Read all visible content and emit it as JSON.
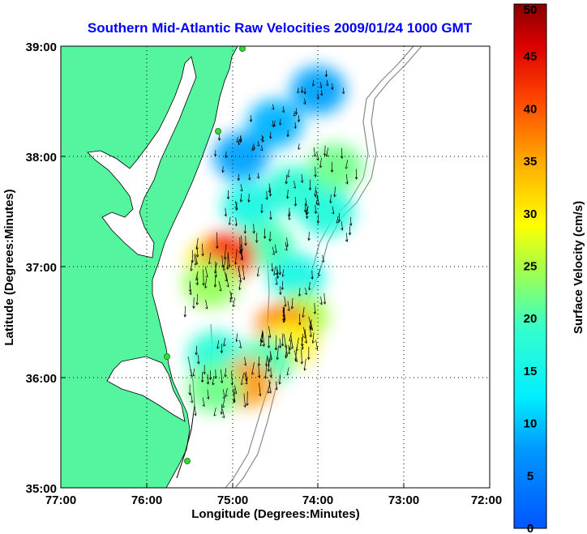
{
  "chart_data": {
    "type": "heatmap",
    "title": "Southern Mid-Atlantic Raw Velocities 2009/01/24 1000 GMT",
    "xlabel": "Longitude (Degrees:Minutes)",
    "ylabel": "Latitude (Degrees:Minutes)",
    "colorbar_label": "Surface Velocity (cm/s)",
    "x_ticks": [
      "77:00",
      "76:00",
      "75:00",
      "74:00",
      "73:00",
      "72:00"
    ],
    "y_ticks": [
      "39:00",
      "38:00",
      "37:00",
      "36:00",
      "35:00"
    ],
    "colorbar_ticks": [
      "50",
      "45",
      "40",
      "35",
      "30",
      "25",
      "20",
      "15",
      "10",
      "5",
      "0"
    ],
    "xlim": [
      -77,
      -72
    ],
    "ylim": [
      35,
      39
    ],
    "clim": [
      0,
      50
    ],
    "grid": true,
    "colormap": "jet",
    "land_color": "#55f5a0",
    "vector_color": "#000000",
    "regions": [
      {
        "lon": -74.0,
        "lat": 38.6,
        "speed": 8
      },
      {
        "lon": -74.5,
        "lat": 38.3,
        "speed": 9
      },
      {
        "lon": -74.9,
        "lat": 38.0,
        "speed": 8
      },
      {
        "lon": -73.8,
        "lat": 37.9,
        "speed": 22
      },
      {
        "lon": -74.3,
        "lat": 37.7,
        "speed": 18
      },
      {
        "lon": -74.8,
        "lat": 37.55,
        "speed": 16
      },
      {
        "lon": -73.9,
        "lat": 37.5,
        "speed": 17
      },
      {
        "lon": -74.6,
        "lat": 37.2,
        "speed": 20
      },
      {
        "lon": -75.2,
        "lat": 37.05,
        "speed": 30
      },
      {
        "lon": -75.05,
        "lat": 37.1,
        "speed": 42
      },
      {
        "lon": -75.25,
        "lat": 36.85,
        "speed": 24
      },
      {
        "lon": -74.25,
        "lat": 36.9,
        "speed": 16
      },
      {
        "lon": -74.2,
        "lat": 36.55,
        "speed": 25
      },
      {
        "lon": -74.4,
        "lat": 36.45,
        "speed": 38
      },
      {
        "lon": -74.35,
        "lat": 36.3,
        "speed": 30
      },
      {
        "lon": -74.6,
        "lat": 36.15,
        "speed": 20
      },
      {
        "lon": -75.2,
        "lat": 36.2,
        "speed": 18
      },
      {
        "lon": -74.85,
        "lat": 35.95,
        "speed": 36
      },
      {
        "lon": -75.2,
        "lat": 35.9,
        "speed": 22
      }
    ]
  }
}
